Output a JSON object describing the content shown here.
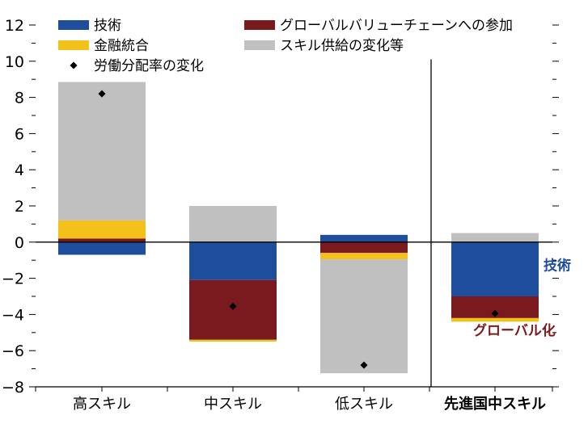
{
  "chart_data": {
    "type": "bar",
    "stacked": true,
    "categories": [
      "高スキル",
      "中スキル",
      "低スキル",
      "先進国中スキル"
    ],
    "category_colors": [
      "#000000",
      "#000000",
      "#000000",
      "#e8141b"
    ],
    "ylim": [
      -8,
      12
    ],
    "yticks": [
      -8,
      -6,
      -4,
      -2,
      0,
      2,
      4,
      6,
      8,
      10,
      12
    ],
    "grid": false,
    "legend_position": "top",
    "series": [
      {
        "name": "技術",
        "color": "#1f4e9c",
        "values": [
          -0.7,
          -2.1,
          0.4,
          -3.0
        ]
      },
      {
        "name": "グローバルバリューチェーンへの参加",
        "color": "#7b1a1e",
        "values": [
          0.2,
          -3.3,
          -0.6,
          -1.2
        ]
      },
      {
        "name": "金融統合",
        "color": "#f2c21b",
        "values": [
          1.0,
          -0.1,
          -0.35,
          -0.2
        ]
      },
      {
        "name": "スキル供給の変化等",
        "color": "#c0c0c0",
        "values": [
          7.65,
          2.0,
          -6.3,
          0.5
        ]
      }
    ],
    "markers": {
      "name": "労働分配率の変化",
      "color": "#000000",
      "values": [
        8.2,
        -3.55,
        -6.8,
        -3.95
      ]
    },
    "annotations": [
      {
        "text": "技術",
        "color": "#1f4e9c"
      },
      {
        "text": "グローバル化",
        "color": "#7b1a1e"
      }
    ]
  }
}
